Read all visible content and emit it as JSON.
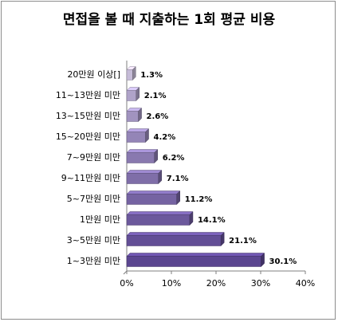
{
  "chart_data": {
    "type": "bar",
    "orientation": "horizontal",
    "title": "면접을 볼 때 지출하는 1회 평균 비용",
    "categories": [
      "20만원 이상[]",
      "11~13만원 미만",
      "13~15만원 미만",
      "15~20만원 미만",
      "7~9만원 미만",
      "9~11만원 미만",
      "5~7만원 미만",
      "1만원 미만",
      "3~5만원 미만",
      "1~3만원 미만"
    ],
    "values": [
      1.3,
      2.1,
      2.6,
      4.2,
      6.2,
      7.1,
      11.2,
      14.1,
      21.1,
      30.1
    ],
    "data_labels": [
      "1.3%",
      "2.1%",
      "2.6%",
      "4.2%",
      "6.2%",
      "7.1%",
      "11.2%",
      "14.1%",
      "21.1%",
      "30.1%"
    ],
    "x_ticks": [
      "0%",
      "10%",
      "20%",
      "30%",
      "40%"
    ],
    "xlim": [
      0,
      40
    ],
    "grid": false,
    "legend": "none",
    "colors": {
      "light": "#c6bcd8",
      "dark": "#5b4690",
      "frame": "#8c8c8c"
    }
  }
}
